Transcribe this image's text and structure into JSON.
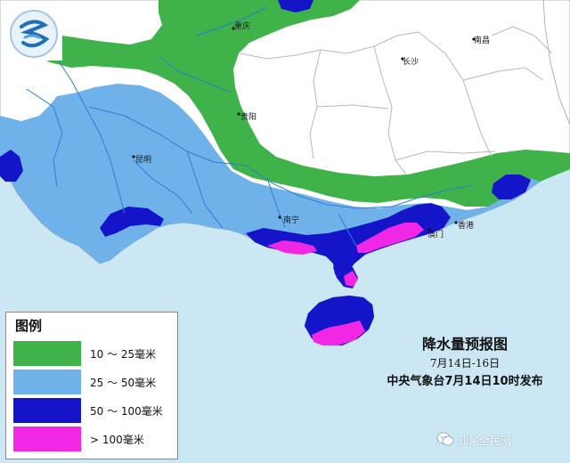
{
  "map": {
    "title": "降水量预报图",
    "date_range": "7月14日-16日",
    "issuer": "中央气象台7月14日10时发布"
  },
  "cities": [
    {
      "id": "chongqing",
      "name": "重庆"
    },
    {
      "id": "changsha",
      "name": "长沙"
    },
    {
      "id": "nanchang",
      "name": "南昌"
    },
    {
      "id": "guiyang",
      "name": "贵阳"
    },
    {
      "id": "kunming",
      "name": "昆明"
    },
    {
      "id": "nanning",
      "name": "南宁"
    },
    {
      "id": "hongkong",
      "name": "香港"
    },
    {
      "id": "macau",
      "name": "澳门"
    }
  ],
  "legend": {
    "title": "图例",
    "items": [
      {
        "label": "10 ～ 25毫米",
        "color": "#3fb34a"
      },
      {
        "label": "25 ～ 50毫米",
        "color": "#6fb2ea"
      },
      {
        "label": "50 ～ 100毫米",
        "color": "#1414c8"
      },
      {
        "label": "> 100毫米",
        "color": "#f028e6"
      }
    ]
  },
  "colors": {
    "sea": "#cbe7f4",
    "land": "#ffffff",
    "province_border": "#b8b8b8",
    "river": "#2a7fd0"
  },
  "watermark": {
    "text": "汕尾全民网",
    "icon": "wechat-icon"
  },
  "logo": {
    "icon": "weather-logo-icon"
  }
}
